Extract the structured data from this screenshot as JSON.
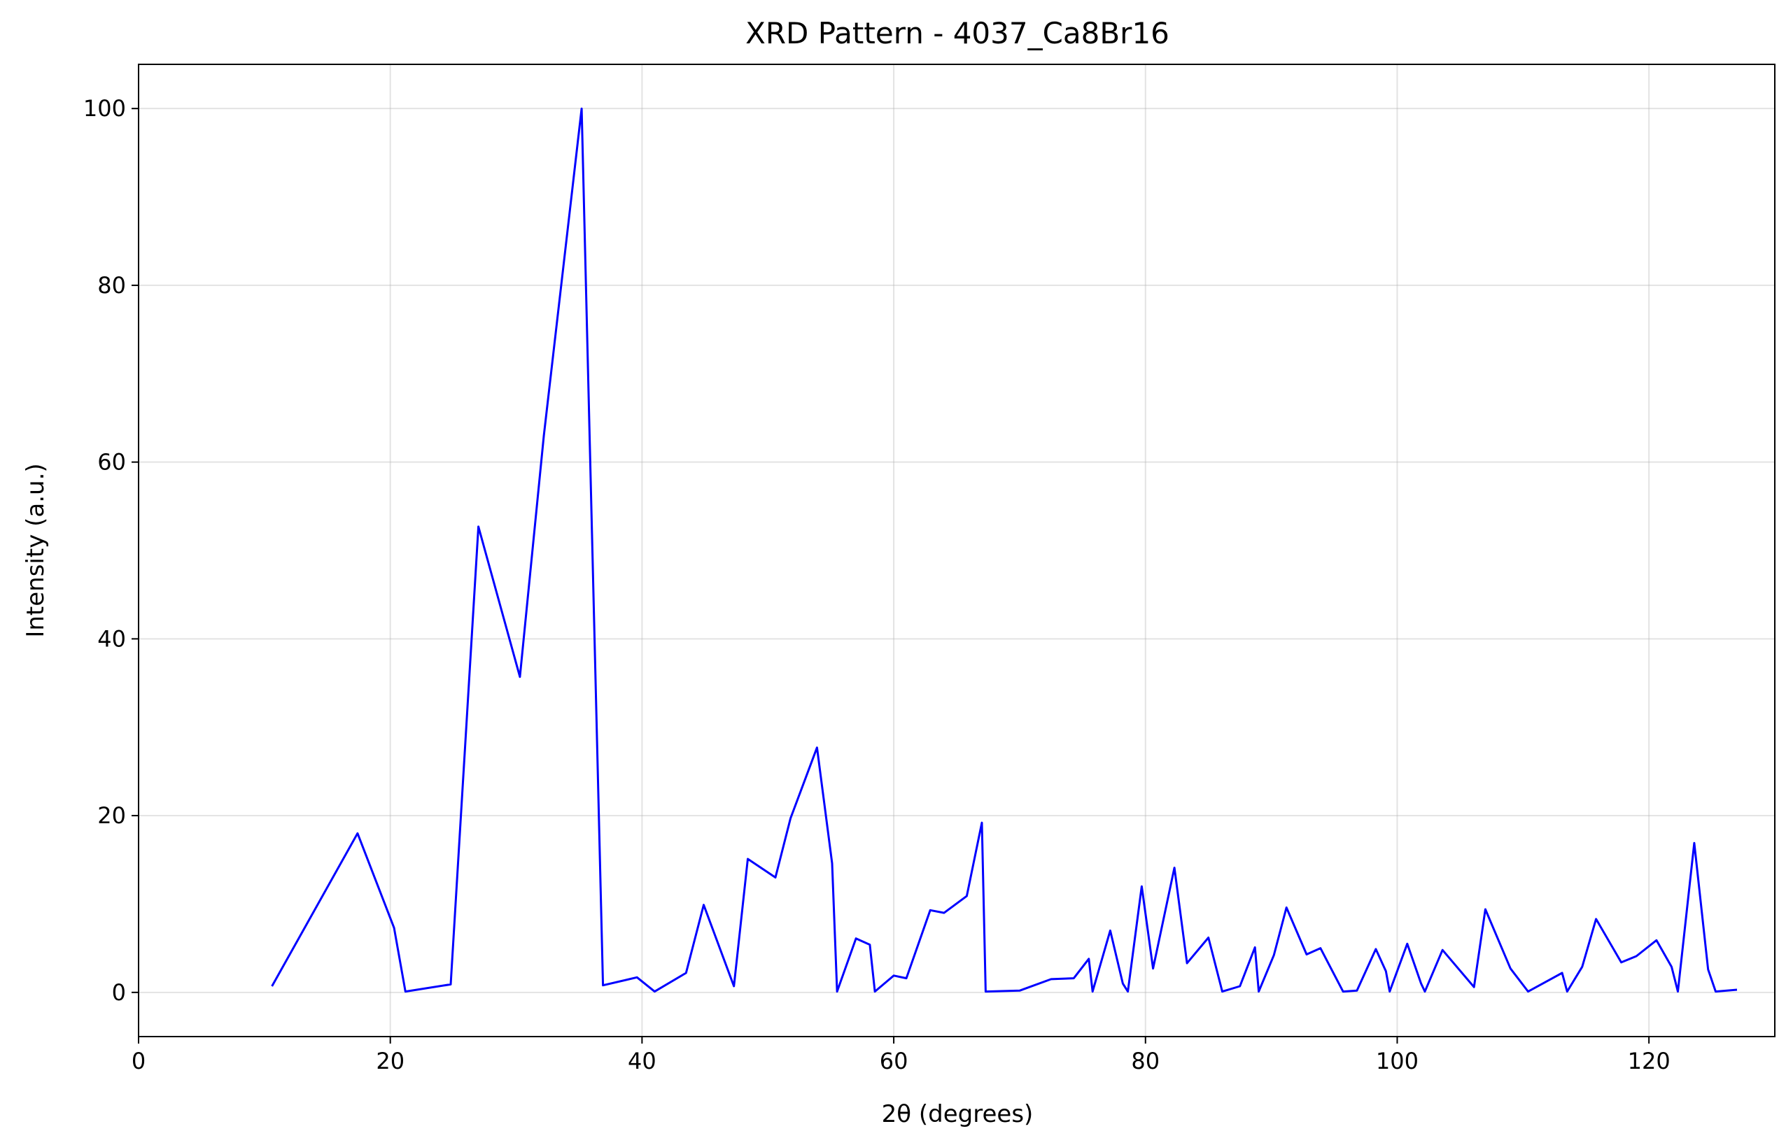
{
  "chart_data": {
    "type": "line",
    "title": "XRD Pattern - 4037_Ca8Br16",
    "xlabel": "2θ (degrees)",
    "ylabel": "Intensity (a.u.)",
    "xlim": [
      0,
      130
    ],
    "ylim": [
      -5,
      105
    ],
    "xticks": [
      0,
      20,
      40,
      60,
      80,
      100,
      120
    ],
    "yticks": [
      0,
      20,
      40,
      60,
      80,
      100
    ],
    "grid": true,
    "series": [
      {
        "color": "#0000ff",
        "x": [
          10.6,
          17.4,
          20.3,
          21.2,
          24.8,
          27.0,
          30.3,
          32.2,
          35.2,
          36.9,
          39.6,
          41.0,
          43.5,
          44.9,
          47.3,
          48.4,
          50.6,
          51.8,
          53.9,
          55.1,
          55.5,
          57.0,
          58.1,
          58.5,
          60.0,
          61.0,
          62.9,
          64.0,
          65.8,
          67.0,
          67.3,
          70.0,
          72.5,
          74.3,
          75.5,
          75.8,
          77.2,
          78.2,
          78.6,
          79.7,
          80.6,
          82.3,
          83.3,
          85.0,
          86.1,
          87.5,
          88.7,
          89.0,
          90.2,
          91.2,
          92.8,
          93.9,
          95.7,
          96.8,
          98.3,
          99.1,
          99.4,
          100.8,
          101.9,
          102.2,
          103.6,
          106.1,
          107.0,
          109.0,
          110.4,
          113.1,
          113.5,
          114.7,
          115.8,
          117.8,
          119.0,
          120.6,
          121.8,
          122.3,
          123.6,
          124.7,
          125.3,
          127.0
        ],
        "values": [
          0.7,
          18.0,
          7.3,
          0.1,
          0.9,
          52.7,
          35.7,
          63.0,
          100.0,
          0.8,
          1.7,
          0.1,
          2.2,
          9.9,
          0.7,
          15.1,
          13.0,
          19.7,
          27.7,
          14.6,
          0.1,
          6.1,
          5.4,
          0.1,
          1.9,
          1.6,
          9.3,
          9.0,
          10.9,
          19.2,
          0.1,
          0.2,
          1.5,
          1.6,
          3.8,
          0.1,
          7.0,
          1.0,
          0.1,
          12.0,
          2.7,
          14.1,
          3.3,
          6.2,
          0.1,
          0.7,
          5.1,
          0.1,
          4.2,
          9.6,
          4.3,
          5.0,
          0.1,
          0.2,
          4.9,
          2.4,
          0.1,
          5.5,
          1.0,
          0.1,
          4.8,
          0.6,
          9.4,
          2.7,
          0.1,
          2.2,
          0.1,
          2.9,
          8.3,
          3.4,
          4.1,
          5.9,
          2.9,
          0.1,
          16.9,
          2.6,
          0.1,
          0.3
        ]
      }
    ]
  }
}
